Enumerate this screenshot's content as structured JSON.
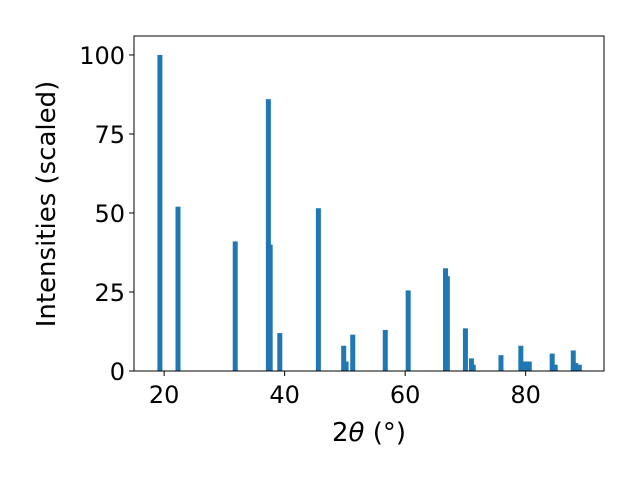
{
  "chart_data": {
    "type": "bar",
    "xlabel_prefix": "2",
    "xlabel_theta": "θ",
    "xlabel_suffix": " (°)",
    "ylabel": "Intensities (scaled)",
    "xlim": [
      15,
      93
    ],
    "ylim": [
      0,
      106
    ],
    "xticks": [
      20,
      40,
      60,
      80
    ],
    "yticks": [
      0,
      25,
      50,
      75,
      100
    ],
    "bar_color": "#1f77b4",
    "grid": false,
    "peaks": [
      {
        "x": 19.3,
        "y": 100
      },
      {
        "x": 22.3,
        "y": 52
      },
      {
        "x": 31.8,
        "y": 41
      },
      {
        "x": 37.3,
        "y": 86
      },
      {
        "x": 37.6,
        "y": 40
      },
      {
        "x": 39.2,
        "y": 12
      },
      {
        "x": 45.6,
        "y": 51.5
      },
      {
        "x": 49.8,
        "y": 8
      },
      {
        "x": 50.2,
        "y": 3
      },
      {
        "x": 51.3,
        "y": 11.5
      },
      {
        "x": 56.7,
        "y": 13
      },
      {
        "x": 60.5,
        "y": 25.5
      },
      {
        "x": 66.7,
        "y": 32.5
      },
      {
        "x": 67.0,
        "y": 30
      },
      {
        "x": 70.0,
        "y": 13.5
      },
      {
        "x": 71.0,
        "y": 4
      },
      {
        "x": 71.3,
        "y": 2
      },
      {
        "x": 75.9,
        "y": 5
      },
      {
        "x": 79.2,
        "y": 8
      },
      {
        "x": 79.6,
        "y": 3
      },
      {
        "x": 80.2,
        "y": 3
      },
      {
        "x": 80.6,
        "y": 3
      },
      {
        "x": 84.4,
        "y": 5.5
      },
      {
        "x": 84.9,
        "y": 2
      },
      {
        "x": 87.9,
        "y": 6.5
      },
      {
        "x": 88.3,
        "y": 2.5
      },
      {
        "x": 88.9,
        "y": 2
      }
    ]
  }
}
